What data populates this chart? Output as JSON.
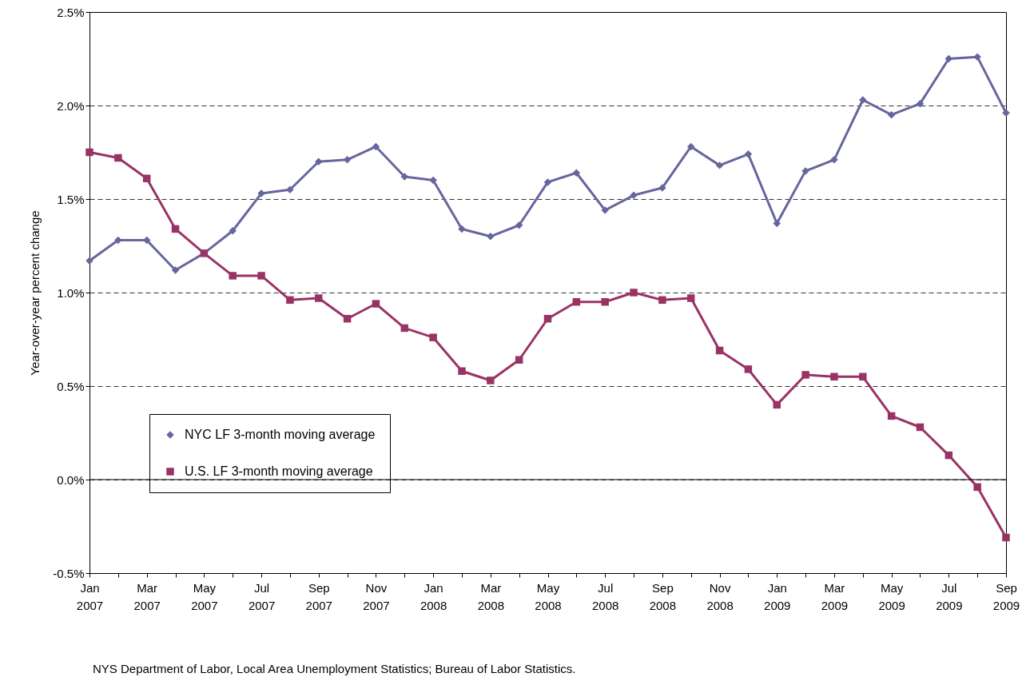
{
  "chart_data": {
    "type": "line",
    "ylabel": "Year-over-year percent change",
    "categories": [
      "Jan 2007",
      null,
      "Mar 2007",
      null,
      "May 2007",
      null,
      "Jul 2007",
      null,
      "Sep 2007",
      null,
      "Nov 2007",
      null,
      "Jan 2008",
      null,
      "Mar 2008",
      null,
      "May 2008",
      null,
      "Jul 2008",
      null,
      "Sep 2008",
      null,
      "Nov 2008",
      null,
      "Jan 2009",
      null,
      "Mar 2009",
      null,
      "May 2009",
      null,
      "Jul 2009",
      null,
      "Sep 2009"
    ],
    "series": [
      {
        "name": "NYC LF 3-month moving average",
        "color": "#66669e",
        "marker": "diamond",
        "values": [
          1.17,
          1.28,
          1.28,
          1.12,
          1.21,
          1.33,
          1.53,
          1.55,
          1.7,
          1.71,
          1.78,
          1.62,
          1.6,
          1.34,
          1.3,
          1.36,
          1.59,
          1.64,
          1.44,
          1.52,
          1.56,
          1.78,
          1.68,
          1.74,
          1.37,
          1.65,
          1.71,
          2.03,
          1.95,
          2.01,
          2.25,
          2.26,
          1.96
        ]
      },
      {
        "name": "U.S. LF 3-month moving average",
        "color": "#993366",
        "marker": "square",
        "values": [
          1.75,
          1.72,
          1.61,
          1.34,
          1.21,
          1.09,
          1.09,
          0.96,
          0.97,
          0.86,
          0.94,
          0.81,
          0.76,
          0.58,
          0.53,
          0.64,
          0.86,
          0.95,
          0.95,
          1.0,
          0.96,
          0.97,
          0.69,
          0.59,
          0.4,
          0.56,
          0.55,
          0.55,
          0.34,
          0.28,
          0.13,
          -0.04,
          -0.31
        ]
      }
    ],
    "ylim": [
      -0.5,
      2.5
    ],
    "yticks": [
      {
        "value": -0.5,
        "label": "-0.5%"
      },
      {
        "value": 0,
        "label": "0.0%"
      },
      {
        "value": 0.5,
        "label": "0.5%"
      },
      {
        "value": 1,
        "label": "1.0%"
      },
      {
        "value": 1.5,
        "label": "1.5%"
      },
      {
        "value": 2,
        "label": "2.0%"
      },
      {
        "value": 2.5,
        "label": "2.5%"
      }
    ],
    "grid": "y",
    "line_style": "solid",
    "legend": "bottom left",
    "ref_lines": [
      {
        "axis": "y",
        "value": 0,
        "color": "#000000",
        "line_style": "solid"
      }
    ],
    "annotations": [
      "NYS Department of Labor, Local Area Unemployment Statistics; Bureau of Labor Statistics."
    ]
  }
}
